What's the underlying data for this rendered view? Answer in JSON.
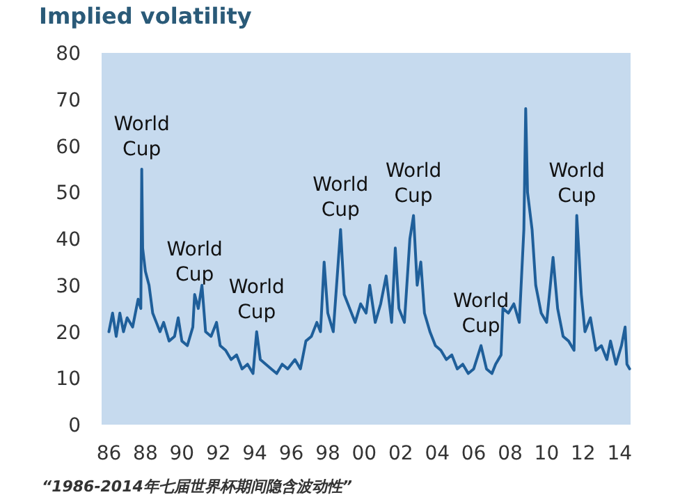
{
  "chart_data": {
    "type": "line",
    "title": "Implied volatility",
    "x": [
      1986.0,
      1986.2,
      1986.4,
      1986.6,
      1986.8,
      1987.0,
      1987.3,
      1987.6,
      1987.75,
      1987.8,
      1987.85,
      1988.0,
      1988.2,
      1988.4,
      1988.6,
      1988.8,
      1989.0,
      1989.3,
      1989.6,
      1989.8,
      1990.0,
      1990.3,
      1990.6,
      1990.7,
      1990.9,
      1991.1,
      1991.3,
      1991.6,
      1991.9,
      1992.1,
      1992.4,
      1992.7,
      1993.0,
      1993.3,
      1993.6,
      1993.9,
      1994.1,
      1994.3,
      1994.6,
      1994.9,
      1995.2,
      1995.5,
      1995.8,
      1996.2,
      1996.5,
      1996.8,
      1997.1,
      1997.4,
      1997.6,
      1997.8,
      1998.0,
      1998.3,
      1998.7,
      1998.9,
      1999.2,
      1999.5,
      1999.8,
      2000.1,
      2000.3,
      2000.6,
      2000.9,
      2001.2,
      2001.5,
      2001.7,
      2001.9,
      2002.2,
      2002.5,
      2002.7,
      2002.9,
      2003.1,
      2003.3,
      2003.6,
      2003.9,
      2004.2,
      2004.5,
      2004.8,
      2005.1,
      2005.4,
      2005.7,
      2006.0,
      2006.4,
      2006.7,
      2007.0,
      2007.2,
      2007.5,
      2007.6,
      2007.9,
      2008.2,
      2008.5,
      2008.75,
      2008.85,
      2008.95,
      2009.2,
      2009.4,
      2009.7,
      2010.0,
      2010.35,
      2010.6,
      2010.9,
      2011.2,
      2011.5,
      2011.65,
      2011.9,
      2012.1,
      2012.4,
      2012.7,
      2013.0,
      2013.3,
      2013.5,
      2013.8,
      2014.1,
      2014.3,
      2014.4,
      2014.55
    ],
    "series": [
      {
        "color": "#1f5f9a",
        "values": [
          20,
          24,
          19,
          24,
          20,
          23,
          21,
          27,
          25,
          55,
          38,
          33,
          30,
          24,
          22,
          20,
          22,
          18,
          19,
          23,
          18,
          17,
          21,
          28,
          25,
          30,
          20,
          19,
          22,
          17,
          16,
          14,
          15,
          12,
          13,
          11,
          20,
          14,
          13,
          12,
          11,
          13,
          12,
          14,
          12,
          18,
          19,
          22,
          20,
          35,
          24,
          20,
          42,
          28,
          25,
          22,
          26,
          24,
          30,
          22,
          26,
          32,
          22,
          38,
          25,
          22,
          40,
          45,
          30,
          35,
          24,
          20,
          17,
          16,
          14,
          15,
          12,
          13,
          11,
          12,
          17,
          12,
          11,
          13,
          15,
          25,
          24,
          26,
          22,
          42,
          68,
          50,
          42,
          30,
          24,
          22,
          36,
          25,
          19,
          18,
          16,
          45,
          28,
          20,
          23,
          16,
          17,
          14,
          18,
          13,
          17,
          21,
          13,
          12
        ]
      }
    ],
    "xlim": [
      1985.6,
      2014.6
    ],
    "ylim": [
      0,
      80
    ],
    "xticks": [
      {
        "value": 1986,
        "label": "86"
      },
      {
        "value": 1988,
        "label": "88"
      },
      {
        "value": 1990,
        "label": "90"
      },
      {
        "value": 1992,
        "label": "92"
      },
      {
        "value": 1994,
        "label": "94"
      },
      {
        "value": 1996,
        "label": "96"
      },
      {
        "value": 1998,
        "label": "98"
      },
      {
        "value": 2000,
        "label": "00"
      },
      {
        "value": 2002,
        "label": "02"
      },
      {
        "value": 2004,
        "label": "04"
      },
      {
        "value": 2006,
        "label": "06"
      },
      {
        "value": 2008,
        "label": "08"
      },
      {
        "value": 2010,
        "label": "10"
      },
      {
        "value": 2012,
        "label": "12"
      },
      {
        "value": 2014,
        "label": "14"
      }
    ],
    "yticks": [
      0,
      10,
      20,
      30,
      40,
      50,
      60,
      70,
      80
    ],
    "grid": false,
    "marker": "none",
    "line_style": "solid",
    "annotations": [
      {
        "text": "World Cup",
        "x": 1987.8,
        "y": 55
      },
      {
        "text": "World Cup",
        "x": 1990.7,
        "y": 28
      },
      {
        "text": "World Cup",
        "x": 1994.1,
        "y": 20
      },
      {
        "text": "World Cup",
        "x": 1998.7,
        "y": 42
      },
      {
        "text": "World Cup",
        "x": 2002.7,
        "y": 45
      },
      {
        "text": "World Cup",
        "x": 2006.4,
        "y": 17
      },
      {
        "text": "World Cup",
        "x": 2011.65,
        "y": 45
      },
      "“1986-2014年七届世界杯期间隐含波动性”"
    ]
  }
}
